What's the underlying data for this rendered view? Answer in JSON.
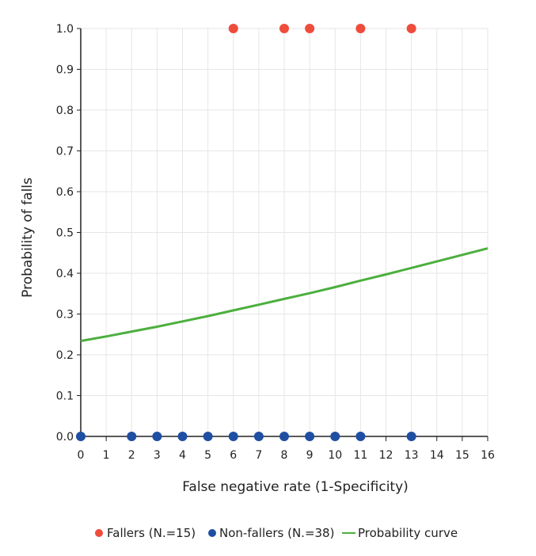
{
  "chart_data": {
    "type": "scatter",
    "title": "",
    "xlabel": "False negative rate (1-Specificity)",
    "ylabel": "Probability of falls",
    "xlim": [
      0,
      16
    ],
    "ylim": [
      0,
      1
    ],
    "x_ticks": [
      0,
      1,
      2,
      3,
      4,
      5,
      6,
      7,
      8,
      9,
      10,
      11,
      12,
      13,
      14,
      15,
      16
    ],
    "y_ticks": [
      "0.0",
      "0.1",
      "0.2",
      "0.3",
      "0.4",
      "0.5",
      "0.6",
      "0.7",
      "0.8",
      "0.9",
      "1.0"
    ],
    "grid": true,
    "legend_position": "bottom",
    "series": [
      {
        "name": "Fallers (N.=15)",
        "kind": "scatter",
        "color": "#ef4c3c",
        "x": [
          6,
          8,
          9,
          11,
          13
        ],
        "y": [
          1,
          1,
          1,
          1,
          1
        ]
      },
      {
        "name": "Non-fallers (N.=38)",
        "kind": "scatter",
        "color": "#1f4fa3",
        "x": [
          0,
          2,
          3,
          4,
          5,
          6,
          7,
          8,
          9,
          10,
          11,
          13
        ],
        "y": [
          0,
          0,
          0,
          0,
          0,
          0,
          0,
          0,
          0,
          0,
          0,
          0
        ]
      },
      {
        "name": "Probability curve",
        "kind": "line",
        "color": "#4caf3e",
        "x": [
          0,
          1,
          2,
          3,
          4,
          5,
          6,
          7,
          8,
          9,
          10,
          11,
          12,
          13,
          14,
          15,
          16
        ],
        "y": [
          0.234,
          0.245,
          0.257,
          0.269,
          0.282,
          0.295,
          0.309,
          0.323,
          0.337,
          0.351,
          0.366,
          0.382,
          0.397,
          0.413,
          0.429,
          0.445,
          0.461
        ]
      }
    ]
  }
}
